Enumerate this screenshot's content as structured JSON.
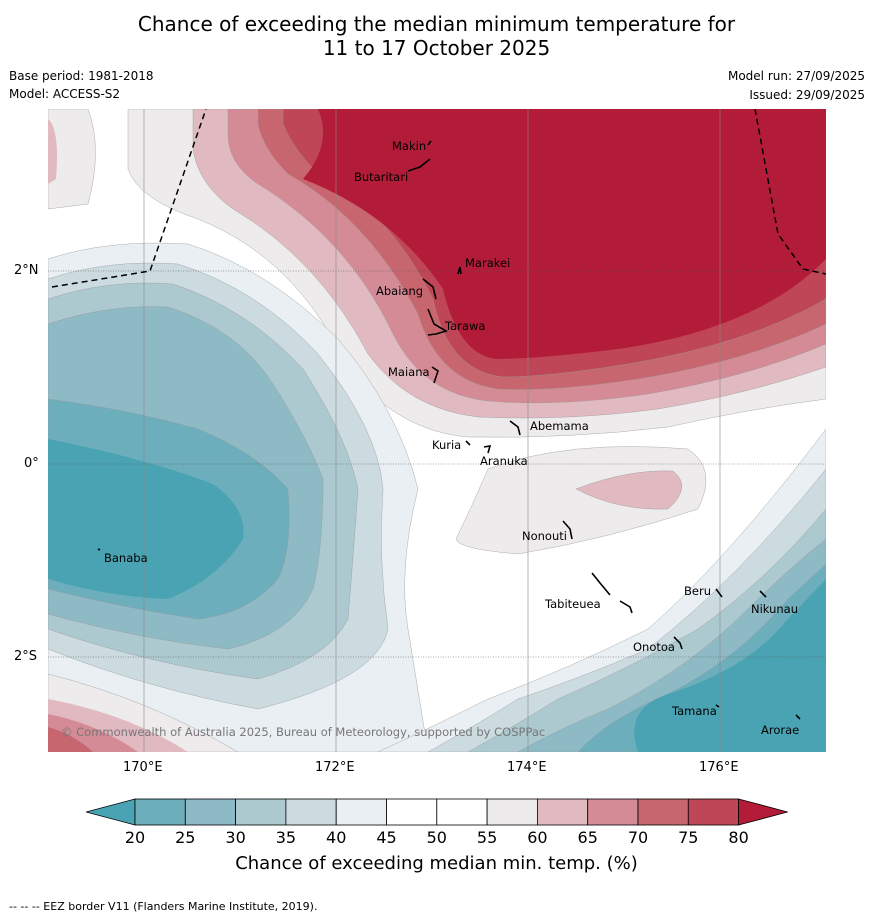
{
  "title": {
    "line1": "Chance of exceeding the median minimum temperature for",
    "line2": "11 to 17 October 2025"
  },
  "meta": {
    "base_period": "Base period: 1981-2018",
    "model": "Model: ACCESS-S2",
    "model_run": "Model run: 27/09/2025",
    "issued": "Issued: 29/09/2025"
  },
  "axes": {
    "lat_labels": [
      "2°N",
      "0°",
      "2°S"
    ],
    "lon_labels": [
      "170°E",
      "172°E",
      "174°E",
      "176°E"
    ]
  },
  "places": [
    {
      "name": "Makin"
    },
    {
      "name": "Butaritari"
    },
    {
      "name": "Marakei"
    },
    {
      "name": "Abaiang"
    },
    {
      "name": "Tarawa"
    },
    {
      "name": "Maiana"
    },
    {
      "name": "Abemama"
    },
    {
      "name": "Kuria"
    },
    {
      "name": "Aranuka"
    },
    {
      "name": "Nonouti"
    },
    {
      "name": "Banaba"
    },
    {
      "name": "Tabiteuea"
    },
    {
      "name": "Beru"
    },
    {
      "name": "Nikunau"
    },
    {
      "name": "Onotoa"
    },
    {
      "name": "Tamana"
    },
    {
      "name": "Arorae"
    }
  ],
  "copyright": "© Commonwealth of Australia 2025, Bureau of Meteorology, supported by COSPPac",
  "colorbar": {
    "ticks": [
      "20",
      "25",
      "30",
      "35",
      "40",
      "45",
      "50",
      "55",
      "60",
      "65",
      "70",
      "75",
      "80"
    ],
    "colors": [
      "#4aa3b3",
      "#6caebb",
      "#8dbac5",
      "#abc9cf",
      "#cbdbe0",
      "#e9eff2",
      "#ffffff",
      "#ffffff",
      "#eeebec",
      "#e1b9c0",
      "#d48b96",
      "#c8666f",
      "#bf4656",
      "#b31c38"
    ],
    "label": "Chance of exceeding median min. temp. (%)"
  },
  "footer": "--  --  -- EEZ border V11 (Flanders Marine Institute, 2019)."
}
